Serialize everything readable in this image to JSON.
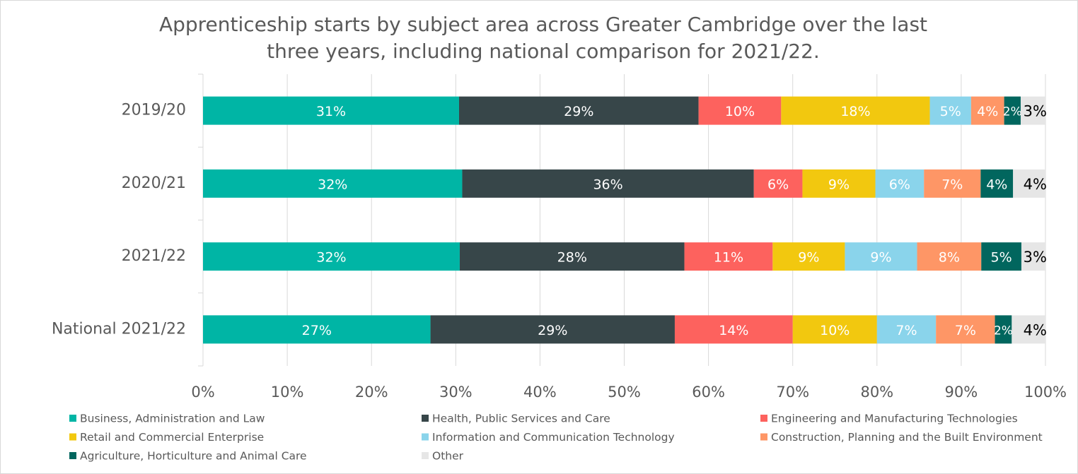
{
  "chart_data": {
    "type": "stacked_bar_100",
    "orientation": "horizontal",
    "title": [
      "Apprenticeship starts by subject area across Greater Cambridge over the last",
      "three years, including national comparison for 2021/22."
    ],
    "categories": [
      "2019/20",
      "2020/21",
      "2021/22",
      "National 2021/22"
    ],
    "series": [
      {
        "name": "Business, Administration and Law",
        "color": "#00b5a5",
        "label_color": "#ffffff",
        "values": [
          31,
          32,
          32,
          27
        ],
        "value_labels": [
          "31%",
          "32%",
          "32%",
          "27%"
        ]
      },
      {
        "name": "Health, Public Services and Care",
        "color": "#374649",
        "label_color": "#ffffff",
        "values": [
          29,
          36,
          28,
          29
        ],
        "value_labels": [
          "29%",
          "36%",
          "28%",
          "29%"
        ]
      },
      {
        "name": "Engineering and Manufacturing Technologies",
        "color": "#fd625e",
        "label_color": "#ffffff",
        "values": [
          10,
          6,
          11,
          14
        ],
        "value_labels": [
          "10%",
          "6%",
          "11%",
          "14%"
        ]
      },
      {
        "name": "Retail and Commercial Enterprise",
        "color": "#f2c80f",
        "label_color": "#ffffff",
        "values": [
          18,
          9,
          9,
          10
        ],
        "value_labels": [
          "18%",
          "9%",
          "9%",
          "10%"
        ]
      },
      {
        "name": "Information and Communication Technology",
        "color": "#8ad4eb",
        "label_color": "#ffffff",
        "values": [
          5,
          6,
          9,
          7
        ],
        "value_labels": [
          "5%",
          "6%",
          "9%",
          "7%"
        ]
      },
      {
        "name": "Construction, Planning and the Built Environment",
        "color": "#fe9666",
        "label_color": "#ffffff",
        "values": [
          4,
          7,
          8,
          7
        ],
        "value_labels": [
          "4%",
          "7%",
          "8%",
          "7%"
        ]
      },
      {
        "name": "Agriculture, Horticulture and Animal Care",
        "color": "#01665e",
        "label_color": "#ffffff",
        "values": [
          2,
          4,
          5,
          2
        ],
        "value_labels": [
          "2%",
          "4%",
          "5%",
          "2%"
        ]
      },
      {
        "name": "Other",
        "color": "#e6e6e6",
        "label_color": "#000000",
        "values": [
          3,
          4,
          3,
          4
        ],
        "value_labels": [
          "3%",
          "4%",
          "3%",
          "4%"
        ]
      }
    ],
    "xlim": [
      0,
      100
    ],
    "xticks": [
      {
        "value": 0,
        "label": "0%"
      },
      {
        "value": 10,
        "label": "10%"
      },
      {
        "value": 20,
        "label": "20%"
      },
      {
        "value": 30,
        "label": "30%"
      },
      {
        "value": 40,
        "label": "40%"
      },
      {
        "value": 50,
        "label": "50%"
      },
      {
        "value": 60,
        "label": "60%"
      },
      {
        "value": 70,
        "label": "70%"
      },
      {
        "value": 80,
        "label": "80%"
      },
      {
        "value": 90,
        "label": "90%"
      },
      {
        "value": 100,
        "label": "100%"
      }
    ],
    "grid": true,
    "legend": "bottom"
  }
}
